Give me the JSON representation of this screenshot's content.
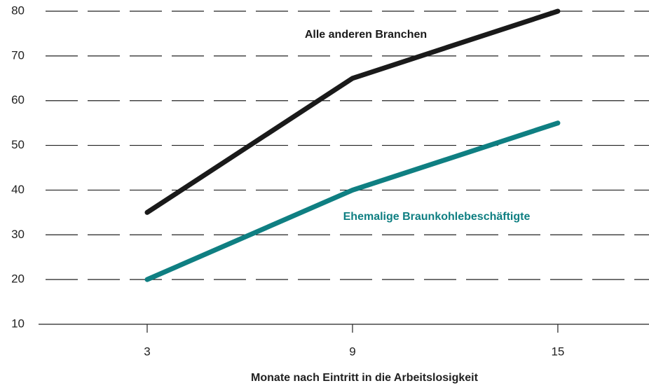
{
  "chart_data": {
    "type": "line",
    "x_label": "Monate nach Eintritt in die Arbeitslosigkeit",
    "x": [
      3,
      9,
      15
    ],
    "xlim": [
      0,
      17.5
    ],
    "xticks": [
      3,
      9,
      15
    ],
    "ylim": [
      10,
      80
    ],
    "yticks": [
      10,
      20,
      30,
      40,
      50,
      60,
      70,
      80
    ],
    "grid": true,
    "series": [
      {
        "name": "Alle anderen Branchen",
        "color": "#1a1a1a",
        "values": [
          35,
          65,
          80
        ]
      },
      {
        "name": "Ehemalige Braunkohlebeschäftigte",
        "color": "#0f7f82",
        "values": [
          20,
          40,
          55
        ]
      }
    ]
  }
}
